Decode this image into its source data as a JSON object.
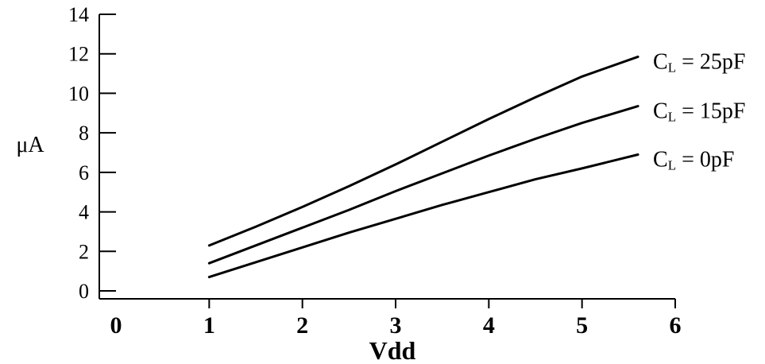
{
  "chart_data": {
    "type": "line",
    "xlabel": "Vdd",
    "ylabel": "μA",
    "xlim": [
      0,
      6
    ],
    "ylim": [
      0,
      14
    ],
    "x_ticks": [
      "0",
      "1",
      "2",
      "3",
      "4",
      "5",
      "6"
    ],
    "y_ticks": [
      "0",
      "2",
      "4",
      "6",
      "8",
      "10",
      "12",
      "14"
    ],
    "grid": false,
    "legend": "inline-right",
    "line_color": "#000000",
    "series": [
      {
        "name": "C_L = 25pF",
        "label_main": "C",
        "label_sub": "L",
        "label_rest": " = 25pF",
        "x": [
          1.0,
          1.5,
          2.0,
          2.5,
          3.0,
          3.5,
          4.0,
          4.5,
          5.0,
          5.6
        ],
        "y": [
          2.3,
          3.25,
          4.25,
          5.3,
          6.4,
          7.55,
          8.7,
          9.8,
          10.85,
          11.85
        ]
      },
      {
        "name": "C_L = 15pF",
        "label_main": "C",
        "label_sub": "L",
        "label_rest": " = 15pF",
        "x": [
          1.0,
          1.5,
          2.0,
          2.5,
          3.0,
          3.5,
          4.0,
          4.5,
          5.0,
          5.6
        ],
        "y": [
          1.4,
          2.3,
          3.2,
          4.1,
          5.05,
          5.95,
          6.85,
          7.7,
          8.5,
          9.35
        ]
      },
      {
        "name": "C_L = 0pF",
        "label_main": "C",
        "label_sub": "L",
        "label_rest": " = 0pF",
        "x": [
          1.0,
          1.5,
          2.0,
          2.5,
          3.0,
          3.5,
          4.0,
          4.5,
          5.0,
          5.6
        ],
        "y": [
          0.7,
          1.45,
          2.2,
          2.95,
          3.65,
          4.35,
          5.0,
          5.65,
          6.2,
          6.9
        ]
      }
    ]
  }
}
